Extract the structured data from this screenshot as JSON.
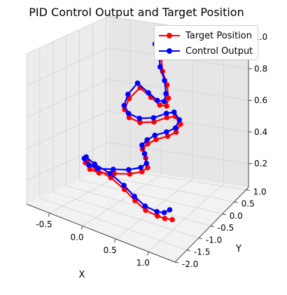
{
  "chart_data": {
    "type": "line",
    "title": "PID Control Output and Target Position",
    "xlabel": "X",
    "ylabel": "Y",
    "zlabel": "",
    "xlim": [
      -0.85,
      1.4
    ],
    "ylim": [
      -2.0,
      1.1
    ],
    "zlim": [
      0.05,
      1.0
    ],
    "xticks": [
      "-0.5",
      "0.0",
      "0.5",
      "1.0"
    ],
    "xtick_values": [
      -0.5,
      0.0,
      0.5,
      1.0
    ],
    "yticks": [
      "-2.0",
      "-1.5",
      "-1.0",
      "-0.5",
      "0.0",
      "0.5",
      "1.0"
    ],
    "ytick_values": [
      -2.0,
      -1.5,
      -1.0,
      -0.5,
      0.0,
      0.5,
      1.0
    ],
    "zticks": [
      "0.2",
      "0.4",
      "0.6",
      "0.8",
      "1.0"
    ],
    "ztick_values": [
      0.2,
      0.4,
      0.6,
      0.8,
      1.0
    ],
    "grid": true,
    "legend_position": "top-right",
    "series": [
      {
        "name": "Target Position",
        "color": "#ff0000",
        "marker": "o",
        "x": [
          0.05,
          0.1,
          0.2,
          0.3,
          0.45,
          0.55,
          0.6,
          0.55,
          0.45,
          0.3,
          0.15,
          0.1,
          0.15,
          0.3,
          0.5,
          0.7,
          0.85,
          0.95,
          0.9,
          0.75,
          0.55,
          0.4,
          0.3,
          0.35,
          0.4,
          0.35,
          0.2,
          0.0,
          -0.2,
          -0.3,
          -0.35,
          -0.3,
          -0.15,
          0.1,
          0.35,
          0.55,
          0.75,
          0.95,
          1.1,
          1.25
        ],
        "y": [
          0.85,
          0.75,
          0.6,
          0.4,
          0.2,
          0.0,
          -0.2,
          -0.35,
          -0.45,
          -0.5,
          -0.55,
          -0.6,
          -0.55,
          -0.5,
          -0.45,
          -0.45,
          -0.5,
          -0.55,
          -0.6,
          -0.55,
          -0.5,
          -0.45,
          -0.4,
          -0.4,
          -0.45,
          -0.55,
          -0.65,
          -0.75,
          -0.85,
          -0.95,
          -1.0,
          -1.05,
          -1.1,
          -1.15,
          -1.25,
          -1.35,
          -1.45,
          -1.5,
          -1.6,
          -1.7
        ],
        "z": [
          0.95,
          0.9,
          0.85,
          0.8,
          0.75,
          0.7,
          0.68,
          0.7,
          0.75,
          0.8,
          0.72,
          0.65,
          0.6,
          0.58,
          0.6,
          0.65,
          0.68,
          0.65,
          0.6,
          0.55,
          0.5,
          0.45,
          0.4,
          0.35,
          0.3,
          0.28,
          0.26,
          0.25,
          0.24,
          0.26,
          0.3,
          0.32,
          0.3,
          0.28,
          0.25,
          0.22,
          0.2,
          0.2,
          0.22,
          0.25
        ]
      },
      {
        "name": "Control Output",
        "color": "#0000ff",
        "marker": "o",
        "x": [
          0.0,
          0.05,
          0.15,
          0.25,
          0.4,
          0.5,
          0.55,
          0.5,
          0.4,
          0.25,
          0.12,
          0.08,
          0.13,
          0.28,
          0.48,
          0.68,
          0.82,
          0.92,
          0.88,
          0.72,
          0.52,
          0.38,
          0.28,
          0.32,
          0.37,
          0.32,
          0.17,
          -0.03,
          -0.23,
          -0.33,
          -0.38,
          -0.33,
          -0.18,
          0.08,
          0.33,
          0.53,
          0.73,
          0.93,
          1.08,
          1.2
        ],
        "y": [
          0.85,
          0.78,
          0.63,
          0.43,
          0.23,
          0.03,
          -0.17,
          -0.32,
          -0.42,
          -0.47,
          -0.52,
          -0.57,
          -0.52,
          -0.47,
          -0.42,
          -0.42,
          -0.47,
          -0.52,
          -0.57,
          -0.52,
          -0.47,
          -0.42,
          -0.37,
          -0.37,
          -0.42,
          -0.52,
          -0.62,
          -0.72,
          -0.82,
          -0.92,
          -0.97,
          -1.02,
          -1.07,
          -1.12,
          -1.22,
          -1.32,
          -1.42,
          -1.47,
          -1.57,
          -1.67
        ],
        "z": [
          0.9,
          0.92,
          0.88,
          0.82,
          0.77,
          0.72,
          0.7,
          0.72,
          0.77,
          0.82,
          0.74,
          0.67,
          0.62,
          0.6,
          0.62,
          0.67,
          0.7,
          0.67,
          0.62,
          0.57,
          0.52,
          0.47,
          0.42,
          0.37,
          0.32,
          0.3,
          0.28,
          0.27,
          0.26,
          0.28,
          0.32,
          0.34,
          0.32,
          0.3,
          0.27,
          0.24,
          0.22,
          0.22,
          0.25,
          0.3
        ]
      }
    ]
  }
}
